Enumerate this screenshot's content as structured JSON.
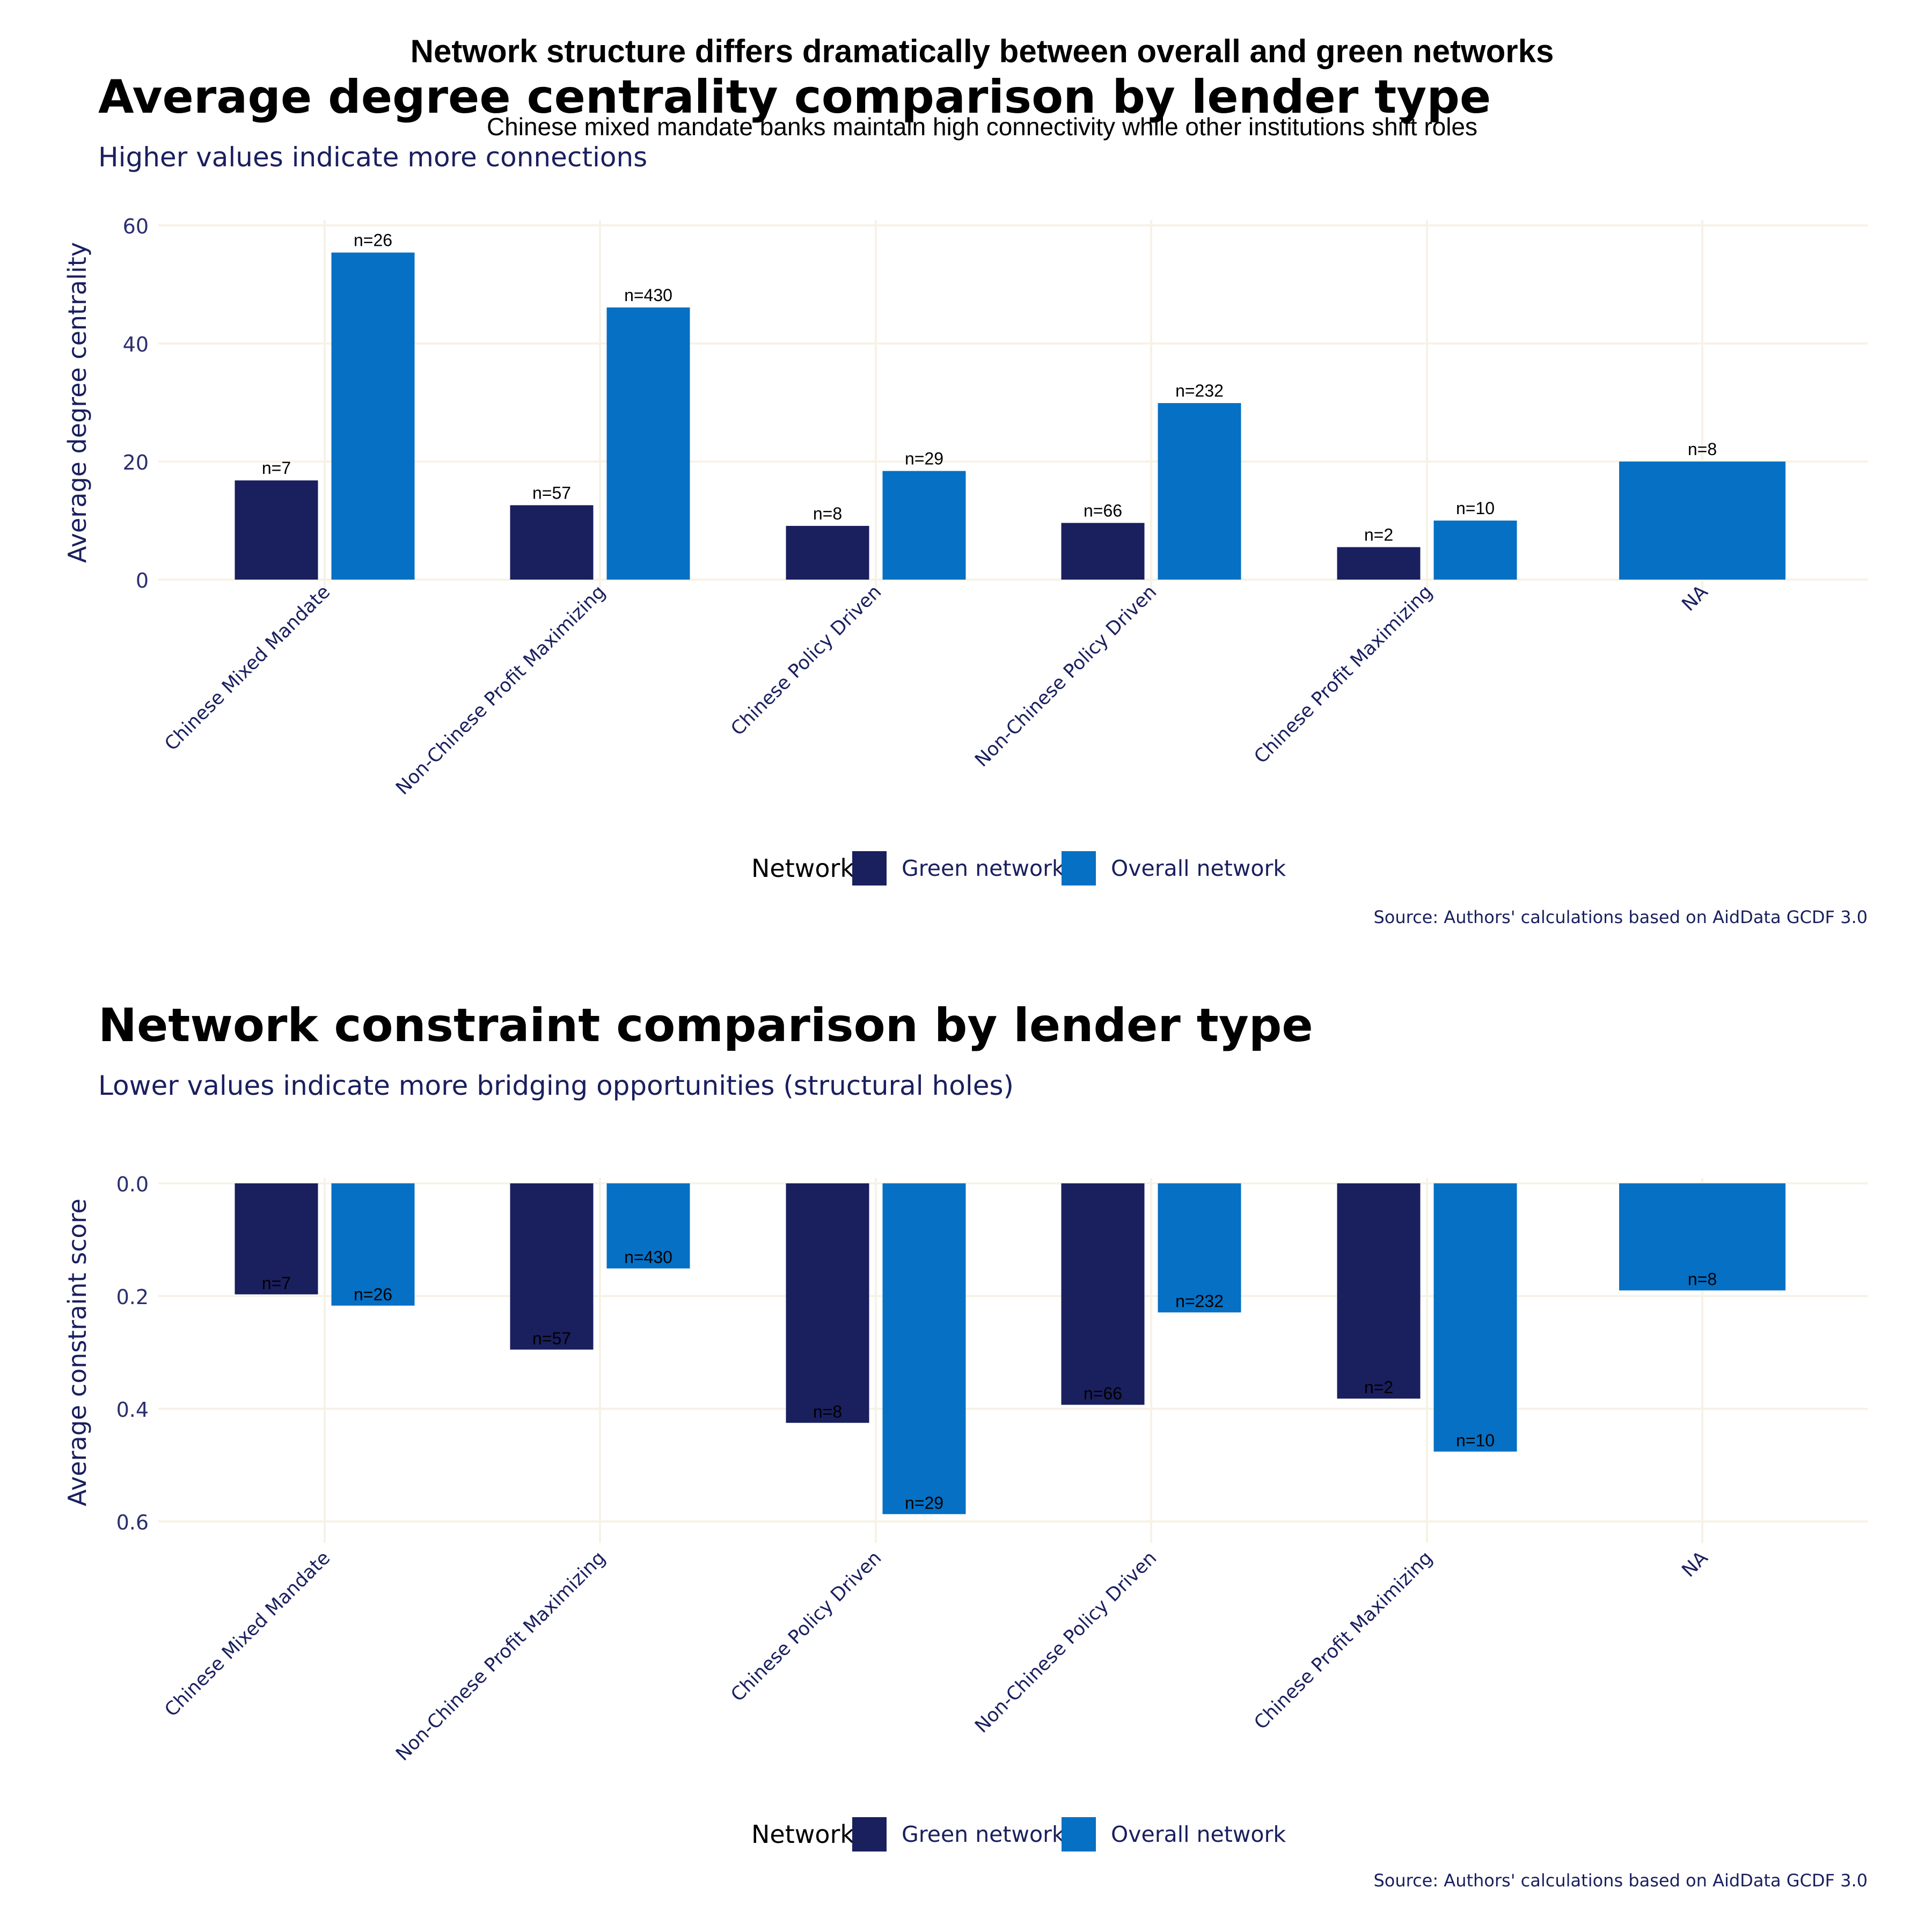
{
  "figure": {
    "title": "Network structure differs dramatically between overall and green networks",
    "subtitle": "Chinese mixed mandate banks maintain high connectivity while other institutions shift roles"
  },
  "colors": {
    "green_network": "#1a1f5e",
    "overall_network": "#0570c4",
    "grid": "#f7f2e6",
    "axis_text": "#2a2f6e",
    "title_text": "#000000",
    "subtitle_text": "#1a1f5e"
  },
  "chart_data": [
    {
      "type": "bar",
      "title": "Average degree centrality comparison by lender type",
      "subtitle": "Higher values indicate more connections",
      "ylabel": "Average degree centrality",
      "xlabel": "",
      "ylim": [
        0,
        60
      ],
      "y_reversed": false,
      "yticks": [
        0,
        20,
        40,
        60
      ],
      "ytick_labels": [
        "0",
        "20",
        "40",
        "60"
      ],
      "categories": [
        "Chinese Mixed Mandate",
        "Non-Chinese Profit Maximizing",
        "Chinese Policy Driven",
        "Non-Chinese Policy Driven",
        "Chinese Profit Maximizing",
        "NA"
      ],
      "series": [
        {
          "name": "Green network",
          "values": [
            16.8,
            12.6,
            9.1,
            9.6,
            5.5,
            null
          ],
          "labels": [
            "n=7",
            "n=57",
            "n=8",
            "n=66",
            "n=2",
            null
          ]
        },
        {
          "name": "Overall network",
          "values": [
            55.4,
            46.1,
            18.4,
            29.9,
            10.0,
            20.0
          ],
          "labels": [
            "n=26",
            "n=430",
            "n=29",
            "n=232",
            "n=10",
            "n=8"
          ]
        }
      ],
      "legend": {
        "title": "Network",
        "position": "bottom"
      },
      "grid": true,
      "caption": "Source: Authors' calculations based on AidData GCDF 3.0"
    },
    {
      "type": "bar",
      "title": "Network constraint comparison by lender type",
      "subtitle": "Lower values indicate more bridging opportunities (structural holes)",
      "ylabel": "Average constraint score",
      "xlabel": "",
      "ylim": [
        0,
        0.6
      ],
      "y_reversed": true,
      "yticks": [
        0,
        0.2,
        0.4,
        0.6
      ],
      "ytick_labels": [
        "0.0",
        "0.2",
        "0.4",
        "0.6"
      ],
      "categories": [
        "Chinese Mixed Mandate",
        "Non-Chinese Profit Maximizing",
        "Chinese Policy Driven",
        "Non-Chinese Policy Driven",
        "Chinese Profit Maximizing",
        "NA"
      ],
      "series": [
        {
          "name": "Green network",
          "values": [
            0.197,
            0.295,
            0.425,
            0.393,
            0.382,
            null
          ],
          "labels": [
            "n=7",
            "n=57",
            "n=8",
            "n=66",
            "n=2",
            null
          ]
        },
        {
          "name": "Overall network",
          "values": [
            0.217,
            0.151,
            0.587,
            0.229,
            0.476,
            0.19
          ],
          "labels": [
            "n=26",
            "n=430",
            "n=29",
            "n=232",
            "n=10",
            "n=8"
          ]
        }
      ],
      "legend": {
        "title": "Network",
        "position": "bottom"
      },
      "grid": true,
      "caption": "Source: Authors' calculations based on AidData GCDF 3.0"
    }
  ]
}
